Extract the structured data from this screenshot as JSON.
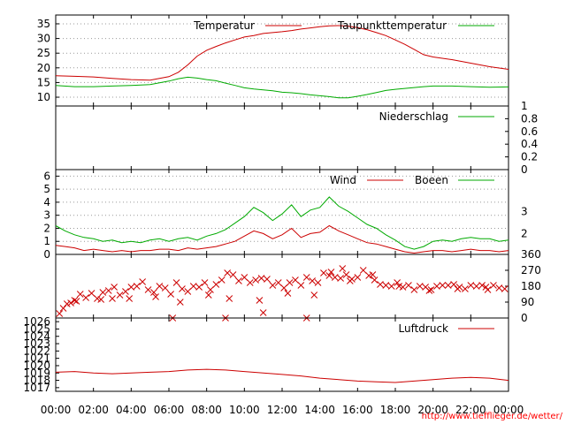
{
  "chart_data": [
    {
      "type": "line",
      "name": "temperature-panel",
      "ylim": [
        7,
        38
      ],
      "yticks": [
        10,
        15,
        20,
        25,
        30,
        35
      ],
      "grid": true,
      "legend": "top-right",
      "series": [
        {
          "name": "Temperatur",
          "color": "#cc0000",
          "x": [
            0,
            1,
            2,
            3,
            4,
            5,
            6,
            6.5,
            7,
            7.5,
            8,
            8.5,
            9,
            9.5,
            10,
            10.5,
            11,
            11.5,
            12,
            12.5,
            13,
            13.5,
            14,
            14.5,
            15,
            15.5,
            16,
            16.5,
            17,
            17.5,
            18,
            18.5,
            19,
            19.5,
            20,
            21,
            22,
            23,
            24
          ],
          "values": [
            17.3,
            17.1,
            16.9,
            16.4,
            16.0,
            15.8,
            17.0,
            18.5,
            21.0,
            24.0,
            26.0,
            27.3,
            28.5,
            29.5,
            30.5,
            31.0,
            31.7,
            32.0,
            32.3,
            32.7,
            33.2,
            33.6,
            34.0,
            34.3,
            34.4,
            34.2,
            33.7,
            33.0,
            32.0,
            31.0,
            29.5,
            28.0,
            26.3,
            24.5,
            23.7,
            22.8,
            21.6,
            20.4,
            19.5
          ]
        },
        {
          "name": "Taupunkttemperatur",
          "color": "#00aa00",
          "x": [
            0,
            1,
            2,
            3,
            4,
            5,
            6,
            6.5,
            7,
            7.5,
            8,
            8.5,
            9,
            9.5,
            10,
            10.5,
            11,
            11.5,
            12,
            12.5,
            13,
            13.5,
            14,
            14.5,
            15,
            15.5,
            16,
            16.5,
            17,
            17.5,
            18,
            18.5,
            19,
            19.5,
            20,
            21,
            22,
            23,
            24
          ],
          "values": [
            14.0,
            13.6,
            13.6,
            13.8,
            14.0,
            14.3,
            15.5,
            16.3,
            16.8,
            16.5,
            16.0,
            15.6,
            14.8,
            14.0,
            13.2,
            12.8,
            12.5,
            12.2,
            11.7,
            11.5,
            11.2,
            10.8,
            10.5,
            10.2,
            9.8,
            9.8,
            10.3,
            10.9,
            11.6,
            12.3,
            12.7,
            13.0,
            13.3,
            13.6,
            13.8,
            13.8,
            13.6,
            13.4,
            13.5
          ]
        }
      ]
    },
    {
      "type": "line",
      "name": "precipitation-panel",
      "ylim": [
        0,
        1
      ],
      "yticks": [
        "0",
        "0.2",
        "0.4",
        "0.6",
        "0.8",
        "1"
      ],
      "grid": false,
      "legend": "top-right",
      "series": [
        {
          "name": "Niederschlag",
          "color": "#00aa00",
          "x": [
            0,
            24
          ],
          "values": [
            0,
            0
          ]
        }
      ]
    },
    {
      "type": "line",
      "name": "wind-panel",
      "ylim": [
        0,
        6.5
      ],
      "yticks": [
        0,
        1,
        2,
        3,
        4,
        5,
        6
      ],
      "yticks_right": [
        {
          "label": "2",
          "value": 1.6
        },
        {
          "label": "3",
          "value": 3.3
        }
      ],
      "grid": true,
      "legend": "top-right",
      "series": [
        {
          "name": "Wind",
          "color": "#cc0000",
          "x": [
            0,
            0.5,
            1,
            1.5,
            2,
            2.5,
            3,
            3.5,
            4,
            4.5,
            5,
            5.5,
            6,
            6.5,
            7,
            7.5,
            8,
            8.5,
            9,
            9.5,
            10,
            10.5,
            11,
            11.5,
            12,
            12.5,
            13,
            13.5,
            14,
            14.5,
            15,
            15.5,
            16,
            16.5,
            17,
            17.5,
            18,
            18.5,
            19,
            19.5,
            20,
            20.5,
            21,
            21.5,
            22,
            22.5,
            23,
            23.5,
            24
          ],
          "values": [
            0.7,
            0.6,
            0.5,
            0.3,
            0.4,
            0.3,
            0.2,
            0.3,
            0.2,
            0.3,
            0.3,
            0.4,
            0.4,
            0.3,
            0.5,
            0.4,
            0.5,
            0.6,
            0.8,
            1.0,
            1.4,
            1.8,
            1.6,
            1.2,
            1.5,
            2.0,
            1.3,
            1.6,
            1.7,
            2.2,
            1.8,
            1.5,
            1.2,
            0.9,
            0.8,
            0.6,
            0.4,
            0.2,
            0.1,
            0.2,
            0.3,
            0.3,
            0.2,
            0.3,
            0.4,
            0.3,
            0.3,
            0.2,
            0.3
          ]
        },
        {
          "name": "Boeen",
          "color": "#00aa00",
          "x": [
            0,
            0.5,
            1,
            1.5,
            2,
            2.5,
            3,
            3.5,
            4,
            4.5,
            5,
            5.5,
            6,
            6.5,
            7,
            7.5,
            8,
            8.5,
            9,
            9.5,
            10,
            10.5,
            11,
            11.5,
            12,
            12.5,
            13,
            13.5,
            14,
            14.5,
            15,
            15.5,
            16,
            16.5,
            17,
            17.5,
            18,
            18.5,
            19,
            19.5,
            20,
            20.5,
            21,
            21.5,
            22,
            22.5,
            23,
            23.5,
            24
          ],
          "values": [
            2.2,
            1.8,
            1.5,
            1.3,
            1.2,
            1.0,
            1.1,
            0.9,
            1.0,
            0.9,
            1.1,
            1.2,
            1.0,
            1.2,
            1.3,
            1.1,
            1.4,
            1.6,
            1.9,
            2.4,
            2.9,
            3.6,
            3.2,
            2.6,
            3.1,
            3.8,
            2.9,
            3.4,
            3.6,
            4.4,
            3.7,
            3.3,
            2.8,
            2.3,
            2.0,
            1.5,
            1.1,
            0.6,
            0.4,
            0.6,
            1.0,
            1.1,
            1.0,
            1.2,
            1.3,
            1.2,
            1.2,
            1.0,
            1.1
          ]
        }
      ]
    },
    {
      "type": "scatter",
      "name": "wind-direction-panel",
      "ylim": [
        0,
        360
      ],
      "yticks": [
        0,
        90,
        180,
        270,
        360
      ],
      "grid": false,
      "series": [
        {
          "name": "",
          "color": "#cc0000",
          "x": [
            0.2,
            0.4,
            0.6,
            0.8,
            1,
            1.3,
            1.6,
            1.9,
            2.2,
            2.5,
            2.8,
            3.1,
            3.4,
            3.7,
            4,
            4.3,
            4.6,
            4.9,
            5.2,
            5.5,
            5.8,
            6.1,
            6.4,
            6.7,
            7,
            7.3,
            7.6,
            7.9,
            8.2,
            8.5,
            8.8,
            9.1,
            9.4,
            9.7,
            10,
            10.3,
            10.6,
            10.9,
            11.2,
            11.5,
            11.8,
            12.1,
            12.4,
            12.7,
            13,
            13.3,
            13.6,
            13.9,
            14.2,
            14.5,
            14.8,
            15.1,
            15.4,
            15.7,
            16,
            16.3,
            16.6,
            16.9,
            17.2,
            17.5,
            17.8,
            18.1,
            18.4,
            18.7,
            19,
            19.3,
            19.6,
            19.9,
            20.2,
            20.5,
            20.8,
            21.1,
            21.4,
            21.7,
            22,
            22.3,
            22.6,
            22.9,
            23.2,
            23.5,
            23.8,
            1.1,
            2.4,
            3.9,
            5.3,
            6.6,
            8.1,
            9.2,
            10.8,
            12.3,
            13.7,
            14.6,
            15.6,
            16.8,
            18.2,
            19.8,
            21.3,
            22.8,
            9.0,
            11.0,
            13.3,
            15.2,
            6.2,
            3.0
          ],
          "values": [
            25,
            55,
            80,
            85,
            100,
            135,
            115,
            140,
            110,
            145,
            155,
            175,
            130,
            150,
            175,
            180,
            205,
            160,
            145,
            180,
            170,
            135,
            200,
            165,
            150,
            180,
            175,
            200,
            160,
            190,
            215,
            255,
            245,
            210,
            230,
            200,
            215,
            225,
            220,
            185,
            200,
            170,
            200,
            215,
            185,
            230,
            210,
            200,
            255,
            240,
            230,
            225,
            245,
            220,
            230,
            270,
            240,
            215,
            190,
            185,
            180,
            200,
            175,
            185,
            160,
            180,
            175,
            160,
            180,
            185,
            185,
            190,
            175,
            165,
            185,
            180,
            185,
            160,
            185,
            170,
            165,
            95,
            105,
            110,
            120,
            90,
            130,
            110,
            100,
            140,
            130,
            260,
            210,
            245,
            180,
            155,
            165,
            175,
            0,
            30,
            0,
            280,
            0,
            110
          ]
        }
      ]
    },
    {
      "type": "line",
      "name": "pressure-panel",
      "ylim": [
        1016.5,
        1026.5
      ],
      "yticks": [
        1017,
        1018,
        1019,
        1020,
        1021,
        1022,
        1023,
        1024,
        1025,
        1026
      ],
      "grid": false,
      "legend": "top-right",
      "xticks": [
        "00:00",
        "02:00",
        "04:00",
        "06:00",
        "08:00",
        "10:00",
        "12:00",
        "14:00",
        "16:00",
        "18:00",
        "20:00",
        "22:00",
        "00:00"
      ],
      "series": [
        {
          "name": "Luftdruck",
          "color": "#cc0000",
          "x": [
            0,
            1,
            2,
            3,
            4,
            5,
            6,
            7,
            8,
            9,
            10,
            11,
            12,
            13,
            14,
            15,
            16,
            17,
            18,
            19,
            20,
            21,
            22,
            23,
            24
          ],
          "values": [
            1019.1,
            1019.2,
            1019.0,
            1018.9,
            1019.0,
            1019.1,
            1019.2,
            1019.4,
            1019.5,
            1019.4,
            1019.2,
            1019.0,
            1018.8,
            1018.6,
            1018.3,
            1018.1,
            1017.9,
            1017.8,
            1017.7,
            1017.9,
            1018.1,
            1018.3,
            1018.4,
            1018.3,
            1018.0
          ]
        }
      ]
    }
  ],
  "footer": {
    "url": "http://www.tiefflieger.de/wetter/"
  }
}
